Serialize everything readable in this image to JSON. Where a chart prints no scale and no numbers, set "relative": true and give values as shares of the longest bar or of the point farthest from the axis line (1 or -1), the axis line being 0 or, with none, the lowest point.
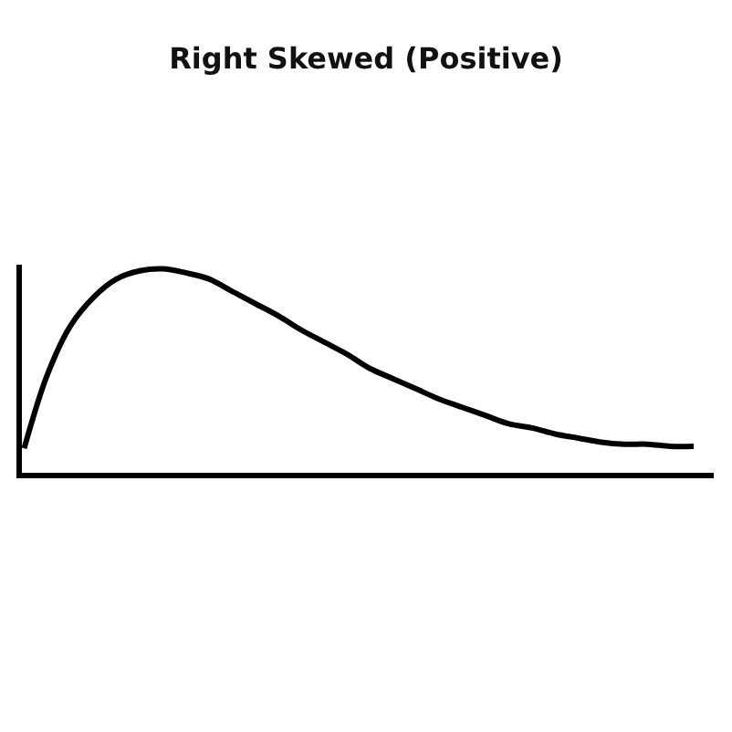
{
  "chart_data": {
    "type": "line",
    "title": "Right Skewed (Positive)",
    "relative": true,
    "categories": [
      null,
      null,
      null,
      null,
      null,
      null,
      null,
      null,
      null,
      null,
      null,
      null,
      null,
      null,
      null,
      null,
      null,
      null,
      null,
      null,
      null,
      null,
      null,
      null,
      null,
      null,
      null,
      null,
      null,
      null
    ],
    "series": [
      {
        "color": "#000000",
        "values": [
          0.12,
          0.48,
          0.72,
          0.86,
          0.95,
          0.99,
          1.0,
          0.98,
          0.95,
          0.89,
          0.83,
          0.77,
          0.7,
          0.64,
          0.58,
          0.51,
          0.46,
          0.41,
          0.36,
          0.32,
          0.28,
          0.24,
          0.22,
          0.19,
          0.17,
          0.15,
          0.14,
          0.14,
          0.13,
          0.13
        ]
      }
    ]
  }
}
